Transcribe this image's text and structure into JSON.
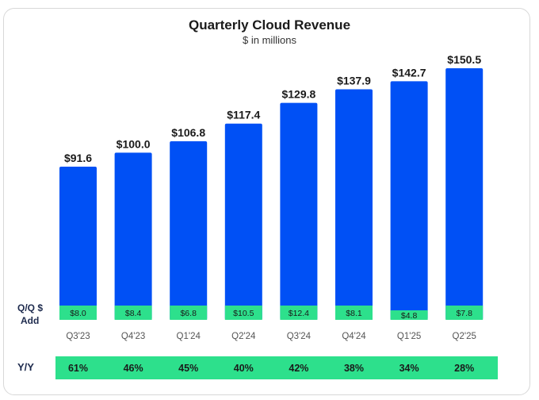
{
  "chart_data": {
    "type": "bar",
    "title": "Quarterly Cloud Revenue",
    "subtitle": "$ in millions",
    "categories": [
      "Q3'23",
      "Q4'23",
      "Q1'24",
      "Q2'24",
      "Q3'24",
      "Q4'24",
      "Q1'25",
      "Q2'25"
    ],
    "series": [
      {
        "values": [
          91.6,
          100.0,
          106.8,
          117.4,
          129.8,
          137.9,
          142.7,
          150.5
        ],
        "labels": [
          "$91.6",
          "$100.0",
          "$106.8",
          "$117.4",
          "$129.8",
          "$137.9",
          "$142.7",
          "$150.5"
        ]
      },
      {
        "values": [
          8.0,
          8.4,
          6.8,
          10.5,
          12.4,
          8.1,
          4.8,
          7.8
        ],
        "labels": [
          "$8.0",
          "$8.4",
          "$6.8",
          "$10.5",
          "$12.4",
          "$8.1",
          "$4.8",
          "$7.8"
        ]
      }
    ],
    "qq_label": "Q/Q $ Add",
    "qq_label_lines": [
      "Q/Q $",
      "Add"
    ],
    "yy_label": "Y/Y",
    "yy_values": [
      "61%",
      "46%",
      "45%",
      "40%",
      "42%",
      "38%",
      "34%",
      "28%"
    ],
    "ylim": [
      0,
      160
    ],
    "grid": false,
    "colors": {
      "revenue": "#0050f5",
      "qq_add": "#2de08c",
      "yy_row": "#2de08c",
      "text": "#1a1a1a"
    }
  }
}
